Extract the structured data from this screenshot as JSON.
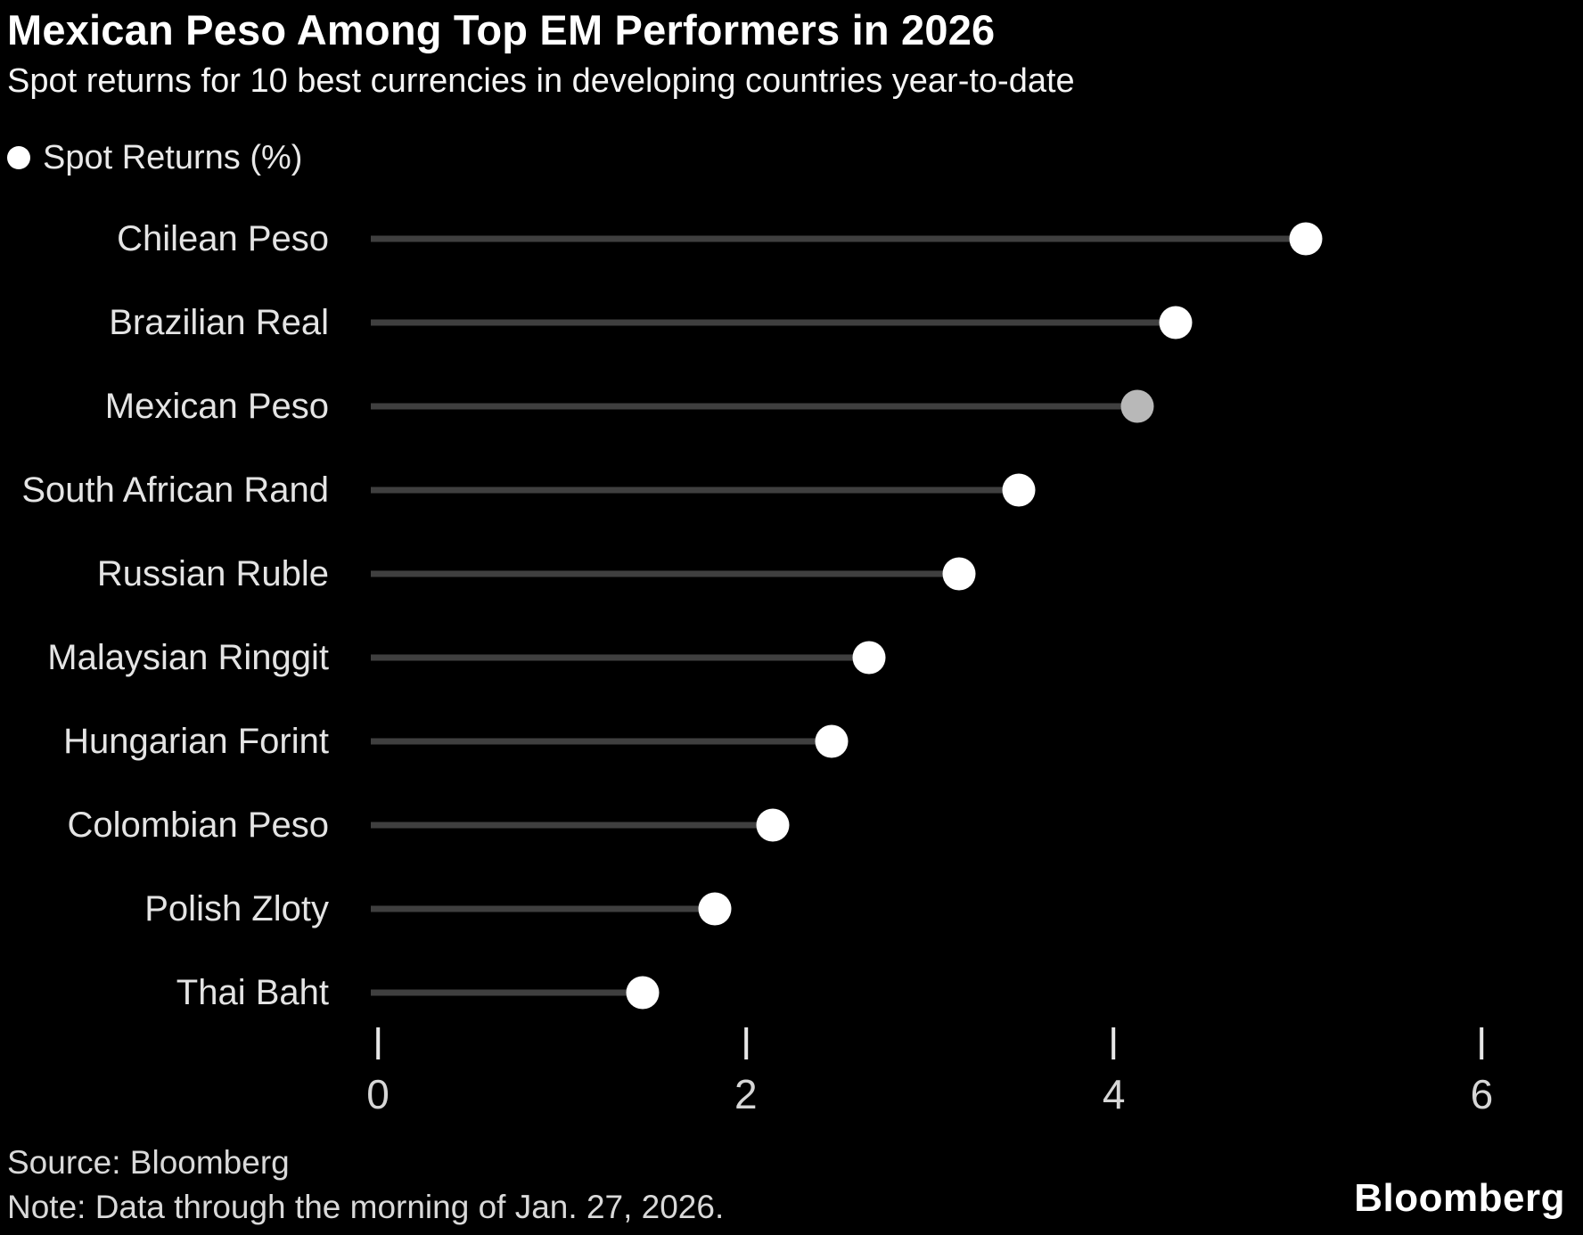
{
  "header": {
    "title": "Mexican Peso Among Top EM Performers in 2026",
    "subtitle": "Spot returns for 10 best currencies in developing countries year-to-date"
  },
  "legend": {
    "label": "Spot Returns (%)"
  },
  "chart_data": {
    "type": "bar",
    "style": "horizontal-lollipop",
    "title": "Mexican Peso Among Top EM Performers in 2026",
    "xlabel": "",
    "ylabel": "",
    "categories": [
      "Chilean Peso",
      "Brazilian Real",
      "Mexican Peso",
      "South African Rand",
      "Russian Ruble",
      "Malaysian Ringgit",
      "Hungarian Forint",
      "Colombian Peso",
      "Polish Zloty",
      "Thai Baht"
    ],
    "values": [
      5.05,
      4.35,
      4.14,
      3.5,
      3.18,
      2.69,
      2.49,
      2.17,
      1.86,
      1.47
    ],
    "series_name": "Spot Returns (%)",
    "highlight_category": "Mexican Peso",
    "x_ticks": [
      0,
      2,
      4,
      6
    ],
    "xlim": [
      0,
      6.55
    ],
    "grid": false,
    "legend_position": "top-left",
    "colors": {
      "background": "#000000",
      "dot": "#ffffff",
      "dot_highlight": "#b8b8b8",
      "stem": "#3f3f3f",
      "tick": "#e8e8e8",
      "label_text": "#e4e4e4"
    }
  },
  "footer": {
    "source": "Source: Bloomberg",
    "note": "Note: Data through the morning of Jan. 27, 2026.",
    "brand": "Bloomberg"
  }
}
